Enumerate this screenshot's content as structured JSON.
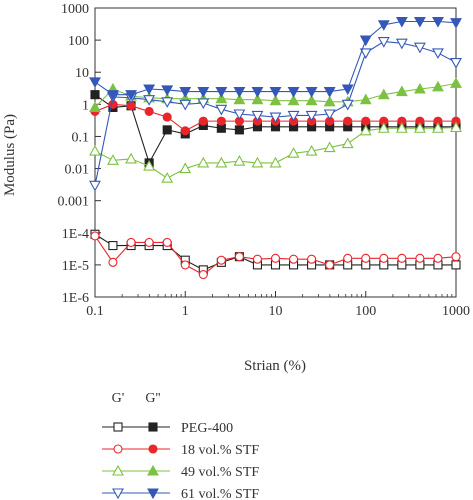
{
  "chart_data": {
    "type": "line",
    "xscale": "log",
    "yscale": "log",
    "xlim": [
      0.1,
      1000
    ],
    "ylim": [
      1e-06,
      1000
    ],
    "xlabel": "Strian (%)",
    "ylabel": "Modulus (Pa)",
    "x_ticks": [
      {
        "value": 0.1,
        "label": "0.1"
      },
      {
        "value": 1,
        "label": "1"
      },
      {
        "value": 10,
        "label": "10"
      },
      {
        "value": 100,
        "label": "100"
      },
      {
        "value": 1000,
        "label": "1000"
      }
    ],
    "y_ticks": [
      {
        "value": 1e-06,
        "label": "1E-6"
      },
      {
        "value": 1e-05,
        "label": "1E-5"
      },
      {
        "value": 0.0001,
        "label": "1E-4"
      },
      {
        "value": 0.001,
        "label": "0.001"
      },
      {
        "value": 0.01,
        "label": "0.01"
      },
      {
        "value": 0.1,
        "label": "0.1"
      },
      {
        "value": 1,
        "label": "1"
      },
      {
        "value": 10,
        "label": "10"
      },
      {
        "value": 100,
        "label": "100"
      },
      {
        "value": 1000,
        "label": "1000"
      }
    ],
    "legend": {
      "header_storage": "G'",
      "header_loss": "G''",
      "position": "bottom"
    },
    "x": [
      0.1,
      0.158,
      0.251,
      0.398,
      0.631,
      1.0,
      1.585,
      2.512,
      3.981,
      6.31,
      10,
      15.85,
      25.12,
      39.81,
      63.1,
      100,
      158.5,
      251.2,
      398.1,
      631,
      1000
    ],
    "series": [
      {
        "name": "PEG-400",
        "modulus": "G'",
        "color": "#222222",
        "marker": "square",
        "filled": false,
        "values": [
          9e-05,
          4e-05,
          4e-05,
          4e-05,
          4e-05,
          1.4e-05,
          7e-06,
          1.2e-05,
          1.8e-05,
          1e-05,
          1e-05,
          1e-05,
          1e-05,
          1e-05,
          1e-05,
          1e-05,
          1e-05,
          1e-05,
          1e-05,
          1e-05,
          1e-05
        ]
      },
      {
        "name": "PEG-400",
        "modulus": "G''",
        "color": "#222222",
        "marker": "square",
        "filled": true,
        "values": [
          2.0,
          0.8,
          0.9,
          0.015,
          0.16,
          0.12,
          0.22,
          0.18,
          0.16,
          0.2,
          0.2,
          0.2,
          0.2,
          0.2,
          0.2,
          0.2,
          0.2,
          0.2,
          0.2,
          0.2,
          0.2
        ]
      },
      {
        "name": "18 vol.% STF",
        "modulus": "G'",
        "color": "#e8262b",
        "marker": "circle",
        "filled": false,
        "values": [
          8e-05,
          1.2e-05,
          5e-05,
          5e-05,
          5e-05,
          1e-05,
          5e-06,
          1.4e-05,
          1.8e-05,
          1.5e-05,
          1.6e-05,
          1.5e-05,
          1.5e-05,
          1e-05,
          1.6e-05,
          1.6e-05,
          1.6e-05,
          1.6e-05,
          1.6e-05,
          1.6e-05,
          1.8e-05
        ]
      },
      {
        "name": "18 vol.% STF",
        "modulus": "G''",
        "color": "#e8262b",
        "marker": "circle",
        "filled": true,
        "values": [
          0.6,
          1.0,
          0.9,
          0.6,
          0.4,
          0.15,
          0.3,
          0.3,
          0.3,
          0.3,
          0.3,
          0.3,
          0.3,
          0.3,
          0.3,
          0.3,
          0.3,
          0.3,
          0.3,
          0.3,
          0.3
        ]
      },
      {
        "name": "49 vol.% STF",
        "modulus": "G'",
        "color": "#7dc143",
        "marker": "triangle-up",
        "filled": false,
        "values": [
          0.035,
          0.018,
          0.02,
          0.012,
          0.005,
          0.01,
          0.015,
          0.015,
          0.017,
          0.015,
          0.015,
          0.03,
          0.035,
          0.045,
          0.06,
          0.15,
          0.18,
          0.18,
          0.18,
          0.18,
          0.19
        ]
      },
      {
        "name": "49 vol.% STF",
        "modulus": "G''",
        "color": "#7dc143",
        "marker": "triangle-up",
        "filled": true,
        "values": [
          0.8,
          3.0,
          1.8,
          1.6,
          1.5,
          1.5,
          1.5,
          1.5,
          1.4,
          1.4,
          1.3,
          1.3,
          1.3,
          1.2,
          1.2,
          1.4,
          2.0,
          2.5,
          3.0,
          3.5,
          4.5
        ]
      },
      {
        "name": "61 vol.% STF",
        "modulus": "G'",
        "color": "#3558b8",
        "marker": "triangle-down",
        "filled": false,
        "values": [
          0.003,
          1.7,
          1.6,
          1.4,
          1.2,
          1.0,
          1.1,
          0.7,
          0.5,
          0.45,
          0.4,
          0.45,
          0.45,
          0.5,
          1.0,
          40,
          90,
          80,
          60,
          40,
          20
        ]
      },
      {
        "name": "61 vol.% STF",
        "modulus": "G''",
        "color": "#3558b8",
        "marker": "triangle-down",
        "filled": true,
        "values": [
          5.0,
          2.0,
          2.0,
          3.0,
          2.8,
          2.5,
          2.5,
          2.5,
          2.5,
          2.5,
          2.5,
          2.5,
          2.5,
          2.5,
          3.0,
          100,
          300,
          380,
          380,
          380,
          350
        ]
      }
    ]
  }
}
